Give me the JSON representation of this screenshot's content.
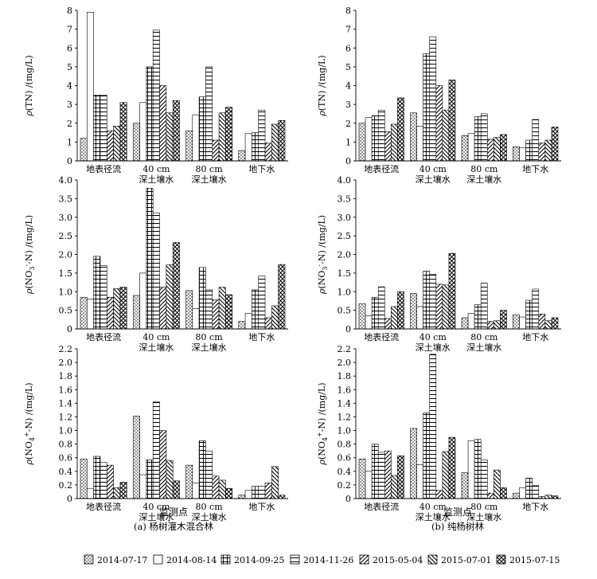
{
  "patterns": [
    "dots",
    "empty",
    "grid",
    "hlines",
    "diag-right",
    "diag-left",
    "cross"
  ],
  "legend": [
    "2014-07-17",
    "2014-08-14",
    "2014-09-25",
    "2014-11-26",
    "2015-05-04",
    "2015-07-01",
    "2015-07-15"
  ],
  "x_title": "监测点",
  "categories": [
    [
      "地表径流"
    ],
    [
      "40 cm",
      "深土壤水"
    ],
    [
      "80 cm",
      "深土壤水"
    ],
    [
      "地下水"
    ]
  ],
  "captions": {
    "a": "(a) 杨树灌木混合林",
    "b": "(b) 纯杨树林"
  },
  "ylabels": {
    "tn": {
      "pre": "ρ",
      "main": "(TN) /(mg/L)"
    },
    "no3": {
      "pre": "ρ",
      "a": "(NO",
      "sub": "3",
      "sup": "-",
      "b": "-N) /(mg/L)"
    },
    "nh4": {
      "pre": "ρ",
      "a": "(NO",
      "sub": "4",
      "sup": "+",
      "b": "-N) /(mg/L)"
    }
  },
  "chart_data": [
    {
      "id": "tn_a",
      "type": "bar",
      "ylabel": "tn",
      "ylim": [
        0,
        8
      ],
      "yticks": [
        "0",
        "1",
        "2",
        "3",
        "4",
        "5",
        "6",
        "7",
        "8"
      ],
      "series": [
        {
          "name": "2014-07-17",
          "values": [
            1.2,
            2.0,
            1.6,
            0.55
          ]
        },
        {
          "name": "2014-08-14",
          "values": [
            7.9,
            3.1,
            2.45,
            1.45
          ]
        },
        {
          "name": "2014-09-25",
          "values": [
            3.5,
            5.0,
            3.4,
            1.5
          ]
        },
        {
          "name": "2014-11-26",
          "values": [
            3.5,
            6.95,
            5.0,
            2.7
          ]
        },
        {
          "name": "2015-05-04",
          "values": [
            1.6,
            4.0,
            1.1,
            0.95
          ]
        },
        {
          "name": "2015-07-01",
          "values": [
            1.85,
            2.55,
            2.55,
            1.95
          ]
        },
        {
          "name": "2015-07-15",
          "values": [
            3.1,
            3.2,
            2.85,
            2.15
          ]
        }
      ]
    },
    {
      "id": "tn_b",
      "type": "bar",
      "ylabel": "tn",
      "ylim": [
        0,
        8
      ],
      "yticks": [
        "0",
        "1",
        "2",
        "3",
        "4",
        "5",
        "6",
        "7",
        "8"
      ],
      "series": [
        {
          "name": "2014-07-17",
          "values": [
            2.0,
            2.55,
            1.35,
            0.75
          ]
        },
        {
          "name": "2014-08-14",
          "values": [
            2.3,
            1.85,
            1.45,
            0.7
          ]
        },
        {
          "name": "2014-09-25",
          "values": [
            2.4,
            5.7,
            2.35,
            1.1
          ]
        },
        {
          "name": "2014-11-26",
          "values": [
            2.7,
            6.6,
            2.5,
            2.2
          ]
        },
        {
          "name": "2015-05-04",
          "values": [
            1.55,
            4.0,
            1.15,
            0.95
          ]
        },
        {
          "name": "2015-07-01",
          "values": [
            1.95,
            2.7,
            1.25,
            1.1
          ]
        },
        {
          "name": "2015-07-15",
          "values": [
            3.35,
            4.3,
            1.4,
            1.8
          ]
        }
      ]
    },
    {
      "id": "no3_a",
      "type": "bar",
      "ylabel": "no3",
      "ylim": [
        0,
        4
      ],
      "yticks": [
        "0",
        "0.5",
        "1.0",
        "1.5",
        "2.0",
        "2.5",
        "3.0",
        "3.5",
        "4.0"
      ],
      "series": [
        {
          "name": "2014-07-17",
          "values": [
            0.85,
            0.9,
            1.03,
            0.2
          ]
        },
        {
          "name": "2014-08-14",
          "values": [
            0.8,
            1.5,
            0.55,
            0.42
          ]
        },
        {
          "name": "2014-09-25",
          "values": [
            1.95,
            3.78,
            1.65,
            1.05
          ]
        },
        {
          "name": "2014-11-26",
          "values": [
            1.7,
            3.12,
            1.05,
            1.42
          ]
        },
        {
          "name": "2015-05-04",
          "values": [
            0.85,
            1.12,
            0.78,
            0.3
          ]
        },
        {
          "name": "2015-07-01",
          "values": [
            1.08,
            1.72,
            1.12,
            0.62
          ]
        },
        {
          "name": "2015-07-15",
          "values": [
            1.12,
            2.32,
            0.92,
            1.73
          ]
        }
      ]
    },
    {
      "id": "no3_b",
      "type": "bar",
      "ylabel": "no3",
      "ylim": [
        0,
        4
      ],
      "yticks": [
        "0",
        "0.5",
        "1.0",
        "1.5",
        "2.0",
        "2.5",
        "3.0",
        "3.5",
        "4.0"
      ],
      "series": [
        {
          "name": "2014-07-17",
          "values": [
            0.68,
            0.95,
            0.3,
            0.38
          ]
        },
        {
          "name": "2014-08-14",
          "values": [
            0.35,
            0.6,
            0.42,
            0.32
          ]
        },
        {
          "name": "2014-09-25",
          "values": [
            0.85,
            1.55,
            0.65,
            0.77
          ]
        },
        {
          "name": "2014-11-26",
          "values": [
            1.13,
            1.47,
            1.23,
            1.07
          ]
        },
        {
          "name": "2015-05-04",
          "values": [
            0.28,
            1.2,
            0.2,
            0.4
          ]
        },
        {
          "name": "2015-07-01",
          "values": [
            0.6,
            1.18,
            0.22,
            0.22
          ]
        },
        {
          "name": "2015-07-15",
          "values": [
            1.0,
            2.03,
            0.5,
            0.3
          ]
        }
      ]
    },
    {
      "id": "nh4_a",
      "type": "bar",
      "ylabel": "nh4",
      "ylim": [
        0,
        2.2
      ],
      "yticks": [
        "0",
        "0.2",
        "0.4",
        "0.6",
        "0.8",
        "1.0",
        "1.2",
        "1.4",
        "1.6",
        "1.8",
        "2.0",
        "2.2"
      ],
      "series": [
        {
          "name": "2014-07-17",
          "values": [
            0.58,
            1.21,
            0.49,
            0.05
          ]
        },
        {
          "name": "2014-08-14",
          "values": [
            0.15,
            0.35,
            0.23,
            0.12
          ]
        },
        {
          "name": "2014-09-25",
          "values": [
            0.62,
            0.57,
            0.85,
            0.18
          ]
        },
        {
          "name": "2014-11-26",
          "values": [
            0.53,
            1.42,
            0.7,
            0.18
          ]
        },
        {
          "name": "2015-05-04",
          "values": [
            0.49,
            1.0,
            0.33,
            0.23
          ]
        },
        {
          "name": "2015-07-01",
          "values": [
            0.16,
            0.56,
            0.27,
            0.47
          ]
        },
        {
          "name": "2015-07-15",
          "values": [
            0.24,
            0.26,
            0.15,
            0.05
          ]
        }
      ]
    },
    {
      "id": "nh4_b",
      "type": "bar",
      "ylabel": "nh4",
      "ylim": [
        0,
        2.2
      ],
      "yticks": [
        "0",
        "0.2",
        "0.4",
        "0.6",
        "0.8",
        "1.0",
        "1.2",
        "1.4",
        "1.6",
        "1.8",
        "2.0",
        "2.2"
      ],
      "series": [
        {
          "name": "2014-07-17",
          "values": [
            0.58,
            1.03,
            0.38,
            0.08
          ]
        },
        {
          "name": "2014-08-14",
          "values": [
            0.4,
            0.5,
            0.85,
            0.16
          ]
        },
        {
          "name": "2014-09-25",
          "values": [
            0.8,
            1.26,
            0.87,
            0.3
          ]
        },
        {
          "name": "2014-11-26",
          "values": [
            0.68,
            2.12,
            0.57,
            0.19
          ]
        },
        {
          "name": "2015-05-04",
          "values": [
            0.7,
            0.12,
            0.08,
            0.03
          ]
        },
        {
          "name": "2015-07-01",
          "values": [
            0.34,
            0.69,
            0.42,
            0.05
          ]
        },
        {
          "name": "2015-07-15",
          "values": [
            0.63,
            0.9,
            0.16,
            0.04
          ]
        }
      ]
    }
  ]
}
